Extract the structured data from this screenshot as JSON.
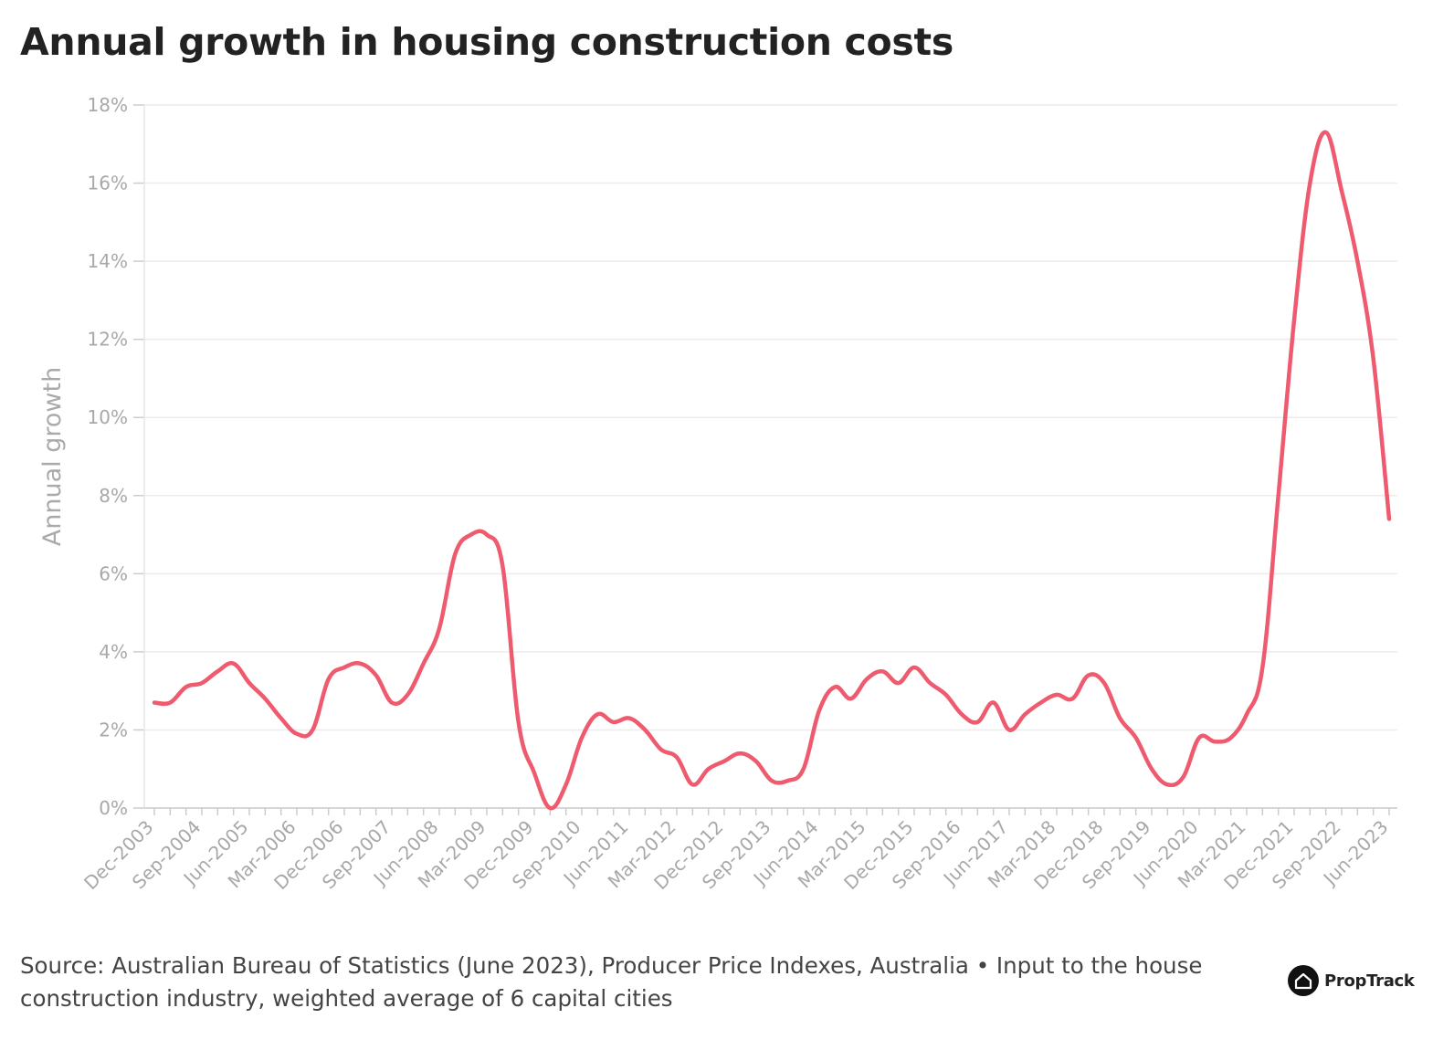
{
  "chart_data": {
    "type": "line",
    "title": "Annual growth in housing construction costs",
    "xlabel": "",
    "ylabel": "Annual growth",
    "ylim": [
      0,
      18
    ],
    "yticks": [
      "0%",
      "2%",
      "4%",
      "6%",
      "8%",
      "10%",
      "12%",
      "14%",
      "16%",
      "18%"
    ],
    "grid": true,
    "legend": "none",
    "x_tick_labels": [
      "Dec-2003",
      "Sep-2004",
      "Jun-2005",
      "Mar-2006",
      "Dec-2006",
      "Sep-2007",
      "Jun-2008",
      "Mar-2009",
      "Dec-2009",
      "Sep-2010",
      "Jun-2011",
      "Mar-2012",
      "Dec-2012",
      "Sep-2013",
      "Jun-2014",
      "Mar-2015",
      "Dec-2015",
      "Sep-2016",
      "Jun-2017",
      "Mar-2018",
      "Dec-2018",
      "Sep-2019",
      "Jun-2020",
      "Mar-2021",
      "Dec-2021",
      "Sep-2022",
      "Jun-2023"
    ],
    "x": [
      "Dec-2003",
      "Mar-2004",
      "Jun-2004",
      "Sep-2004",
      "Dec-2004",
      "Mar-2005",
      "Jun-2005",
      "Sep-2005",
      "Dec-2005",
      "Mar-2006",
      "Jun-2006",
      "Sep-2006",
      "Dec-2006",
      "Mar-2007",
      "Jun-2007",
      "Sep-2007",
      "Dec-2007",
      "Mar-2008",
      "Jun-2008",
      "Sep-2008",
      "Dec-2008",
      "Mar-2009",
      "Jun-2009",
      "Sep-2009",
      "Dec-2009",
      "Mar-2010",
      "Jun-2010",
      "Sep-2010",
      "Dec-2010",
      "Mar-2011",
      "Jun-2011",
      "Sep-2011",
      "Dec-2011",
      "Mar-2012",
      "Jun-2012",
      "Sep-2012",
      "Dec-2012",
      "Mar-2013",
      "Jun-2013",
      "Sep-2013",
      "Dec-2013",
      "Mar-2014",
      "Jun-2014",
      "Sep-2014",
      "Dec-2014",
      "Mar-2015",
      "Jun-2015",
      "Sep-2015",
      "Dec-2015",
      "Mar-2016",
      "Jun-2016",
      "Sep-2016",
      "Dec-2016",
      "Mar-2017",
      "Jun-2017",
      "Sep-2017",
      "Dec-2017",
      "Mar-2018",
      "Jun-2018",
      "Sep-2018",
      "Dec-2018",
      "Mar-2019",
      "Jun-2019",
      "Sep-2019",
      "Dec-2019",
      "Mar-2020",
      "Jun-2020",
      "Sep-2020",
      "Dec-2020",
      "Mar-2021",
      "Jun-2021",
      "Sep-2021",
      "Dec-2021",
      "Mar-2022",
      "Jun-2022",
      "Sep-2022",
      "Dec-2022",
      "Mar-2023",
      "Jun-2023"
    ],
    "series": [
      {
        "color": "#ef5b6e",
        "values": [
          2.7,
          2.7,
          3.1,
          3.2,
          3.5,
          3.7,
          3.2,
          2.8,
          2.3,
          1.9,
          2.0,
          3.3,
          3.6,
          3.7,
          3.4,
          2.7,
          2.9,
          3.7,
          4.6,
          6.5,
          7.0,
          7.0,
          6.2,
          2.2,
          0.9,
          0.0,
          0.6,
          1.8,
          2.4,
          2.2,
          2.3,
          2.0,
          1.5,
          1.3,
          0.6,
          1.0,
          1.2,
          1.4,
          1.2,
          0.7,
          0.7,
          1.0,
          2.5,
          3.1,
          2.8,
          3.3,
          3.5,
          3.2,
          3.6,
          3.2,
          2.9,
          2.4,
          2.2,
          2.7,
          2.0,
          2.4,
          2.7,
          2.9,
          2.8,
          3.4,
          3.2,
          2.3,
          1.8,
          1.0,
          0.6,
          0.8,
          1.8,
          1.7,
          1.8,
          2.4,
          3.6,
          8.0,
          12.5,
          16.0,
          17.3,
          15.8,
          14.0,
          11.5,
          7.4
        ]
      }
    ]
  },
  "footer": {
    "source": "Source: Australian Bureau of Statistics (June 2023), Producer Price Indexes, Australia • Input to the house construction industry, weighted average of 6 capital cities"
  },
  "brand": {
    "name": "PropTrack",
    "icon": "house-logo-icon"
  },
  "colors": {
    "line": "#ef5b6e",
    "grid": "#ececec",
    "axis_text": "#a8a8a8",
    "title": "#222222"
  }
}
